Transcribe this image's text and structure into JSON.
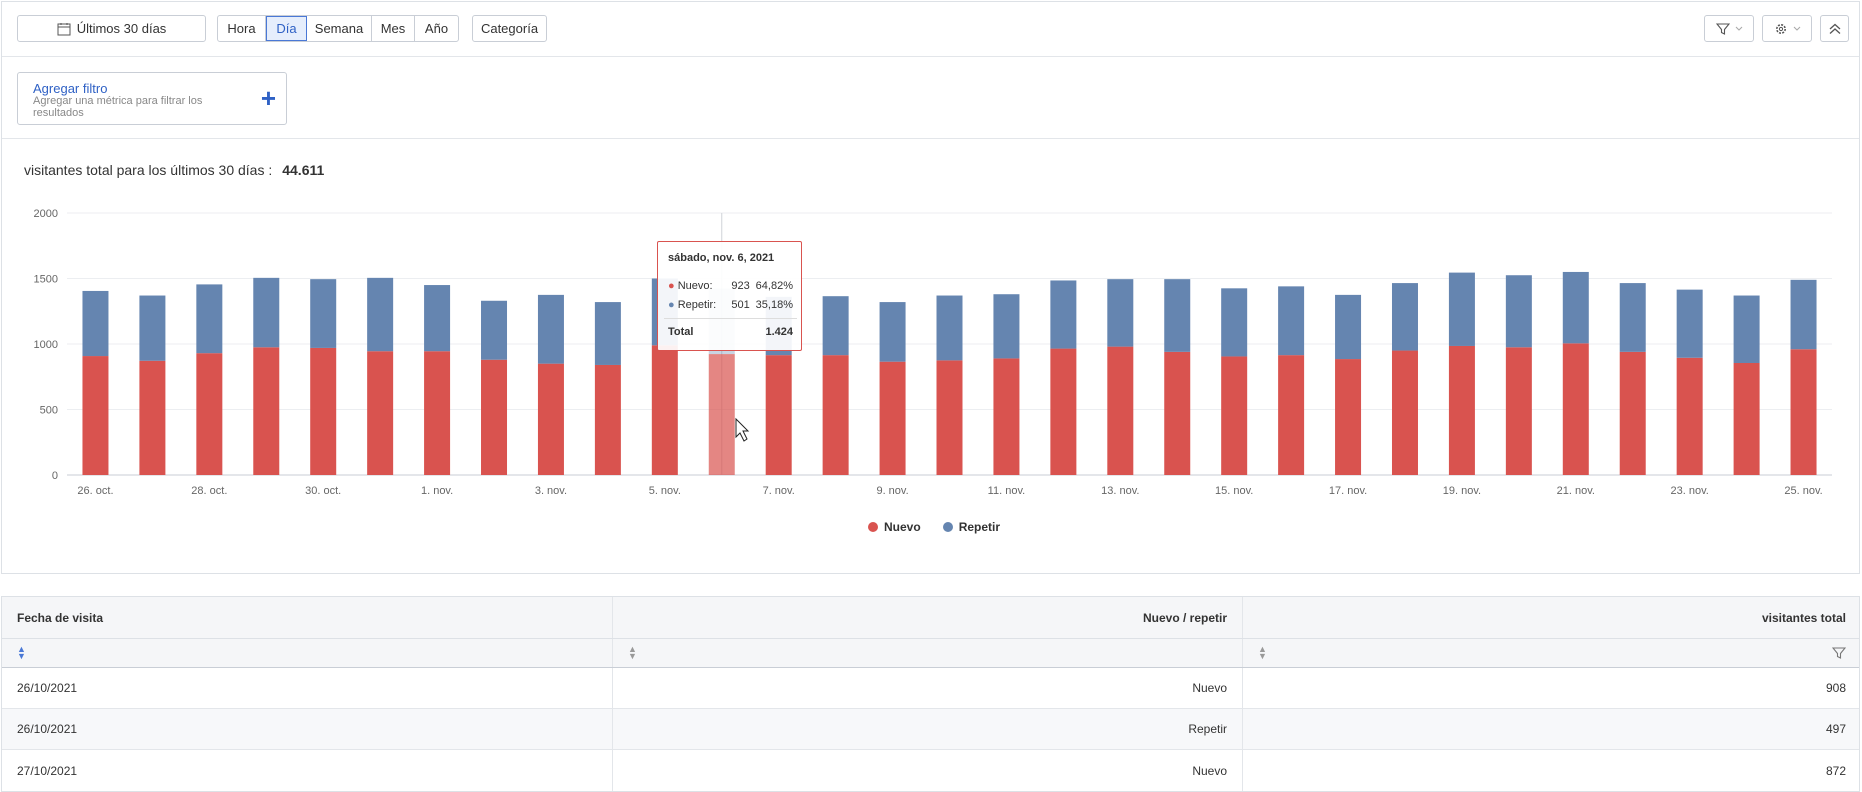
{
  "toolbar": {
    "date_range_label": "Últimos 30 días",
    "granularity": [
      "Hora",
      "Día",
      "Semana",
      "Mes",
      "Año"
    ],
    "active_granularity": "Día",
    "category_label": "Categoría"
  },
  "filter": {
    "add_title": "Agregar filtro",
    "add_desc": "Agregar una métrica para filtrar los resultados",
    "plus": "+"
  },
  "summary": {
    "label": "visitantes total para los últimos 30 días :",
    "value": "44.611"
  },
  "tooltip": {
    "title": "sábado, nov. 6, 2021",
    "rows": [
      {
        "name": "Nuevo:",
        "value": "923",
        "pct": "64,82%"
      },
      {
        "name": "Repetir:",
        "value": "501",
        "pct": "35,18%"
      }
    ],
    "total_label": "Total",
    "total_value": "1.424"
  },
  "chart_data": {
    "type": "bar",
    "stacked": true,
    "categories": [
      "26. oct.",
      "27. oct.",
      "28. oct.",
      "29. oct.",
      "30. oct.",
      "31. oct.",
      "1. nov.",
      "2. nov.",
      "3. nov.",
      "4. nov.",
      "5. nov.",
      "6. nov.",
      "7. nov.",
      "8. nov.",
      "9. nov.",
      "10. nov.",
      "11. nov.",
      "12. nov.",
      "13. nov.",
      "14. nov.",
      "15. nov.",
      "16. nov.",
      "17. nov.",
      "18. nov.",
      "19. nov.",
      "20. nov.",
      "21. nov.",
      "22. nov.",
      "23. nov.",
      "24. nov.",
      "25. nov."
    ],
    "tick_labels": [
      "26. oct.",
      "28. oct.",
      "30. oct.",
      "1. nov.",
      "3. nov.",
      "5. nov.",
      "7. nov.",
      "9. nov.",
      "11. nov.",
      "13. nov.",
      "15. nov.",
      "17. nov.",
      "19. nov.",
      "21. nov.",
      "23. nov.",
      "25. nov."
    ],
    "series": [
      {
        "name": "Nuevo",
        "color": "#d9534f",
        "values": [
          908,
          872,
          930,
          975,
          970,
          945,
          945,
          880,
          850,
          840,
          990,
          923,
          915,
          915,
          865,
          875,
          890,
          965,
          980,
          940,
          905,
          915,
          885,
          950,
          985,
          975,
          1005,
          940,
          895,
          855,
          960
        ]
      },
      {
        "name": "Repetir",
        "color": "#6585b0",
        "values": [
          497,
          498,
          525,
          530,
          525,
          560,
          505,
          450,
          525,
          480,
          510,
          501,
          445,
          450,
          455,
          495,
          490,
          520,
          515,
          555,
          520,
          525,
          490,
          515,
          560,
          550,
          545,
          525,
          520,
          515,
          530
        ]
      }
    ],
    "y_ticks": [
      0,
      500,
      1000,
      1500,
      2000
    ],
    "ylim": [
      0,
      2000
    ],
    "highlight_index": 11
  },
  "table": {
    "headers": [
      "Fecha de visita",
      "Nuevo / repetir",
      "visitantes total"
    ],
    "rows": [
      [
        "26/10/2021",
        "Nuevo",
        "908"
      ],
      [
        "26/10/2021",
        "Repetir",
        "497"
      ],
      [
        "27/10/2021",
        "Nuevo",
        "872"
      ]
    ]
  }
}
